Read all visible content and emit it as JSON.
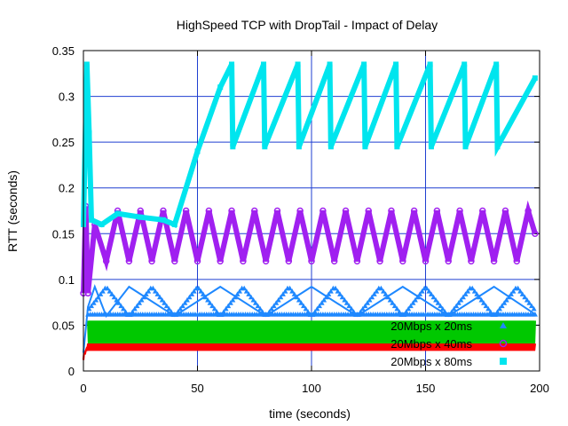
{
  "chart_data": {
    "type": "scatter",
    "title": "HighSpeed TCP with DropTail - Impact of Delay",
    "xlabel": "time (seconds)",
    "ylabel": "RTT (seconds)",
    "xlim": [
      0,
      200
    ],
    "ylim": [
      0,
      0.35
    ],
    "x_ticks": [
      "0",
      "50",
      "100",
      "150",
      "200"
    ],
    "y_ticks": [
      "0",
      "0.05",
      "0.1",
      "0.15",
      "0.2",
      "0.25",
      "0.3",
      "0.35"
    ],
    "grid": true,
    "legend_position": "bottom-right",
    "series": [
      {
        "name": "20Mbps x 20ms",
        "color": "#1e88ff",
        "marker": "triangle",
        "points": [
          [
            0,
            0.02
          ],
          [
            2,
            0.07
          ],
          [
            5,
            0.092
          ],
          [
            10,
            0.06
          ],
          [
            20,
            0.092
          ],
          [
            40,
            0.06
          ],
          [
            60,
            0.092
          ],
          [
            80,
            0.06
          ],
          [
            100,
            0.092
          ],
          [
            120,
            0.06
          ],
          [
            140,
            0.092
          ],
          [
            160,
            0.06
          ],
          [
            180,
            0.092
          ],
          [
            198,
            0.062
          ]
        ]
      },
      {
        "name": "20Mbps x 40ms",
        "color": "#a020f0",
        "marker": "circle",
        "points": [
          [
            0,
            0.085
          ],
          [
            1,
            0.18
          ],
          [
            2,
            0.085
          ],
          [
            5,
            0.16
          ],
          [
            10,
            0.12
          ],
          [
            15,
            0.175
          ],
          [
            20,
            0.12
          ],
          [
            25,
            0.175
          ],
          [
            30,
            0.12
          ],
          [
            35,
            0.175
          ],
          [
            40,
            0.12
          ],
          [
            45,
            0.175
          ],
          [
            50,
            0.12
          ],
          [
            55,
            0.175
          ],
          [
            60,
            0.12
          ],
          [
            65,
            0.175
          ],
          [
            70,
            0.12
          ],
          [
            75,
            0.175
          ],
          [
            80,
            0.12
          ],
          [
            85,
            0.175
          ],
          [
            90,
            0.12
          ],
          [
            95,
            0.175
          ],
          [
            100,
            0.12
          ],
          [
            105,
            0.175
          ],
          [
            110,
            0.12
          ],
          [
            115,
            0.175
          ],
          [
            120,
            0.12
          ],
          [
            125,
            0.175
          ],
          [
            130,
            0.12
          ],
          [
            135,
            0.175
          ],
          [
            140,
            0.12
          ],
          [
            145,
            0.175
          ],
          [
            150,
            0.12
          ],
          [
            155,
            0.175
          ],
          [
            160,
            0.12
          ],
          [
            165,
            0.175
          ],
          [
            170,
            0.12
          ],
          [
            175,
            0.175
          ],
          [
            180,
            0.12
          ],
          [
            185,
            0.175
          ],
          [
            190,
            0.12
          ],
          [
            195,
            0.175
          ],
          [
            198,
            0.15
          ]
        ]
      },
      {
        "name": "20Mbps x 80ms",
        "color": "#00e5ee",
        "marker": "square",
        "points": [
          [
            0,
            0.16
          ],
          [
            1.5,
            0.335
          ],
          [
            2.5,
            0.26
          ],
          [
            3.5,
            0.165
          ],
          [
            8,
            0.16
          ],
          [
            15,
            0.172
          ],
          [
            25,
            0.168
          ],
          [
            35,
            0.165
          ],
          [
            40,
            0.16
          ],
          [
            50,
            0.24
          ],
          [
            60,
            0.31
          ],
          [
            65,
            0.335
          ],
          [
            65.5,
            0.245
          ],
          [
            79,
            0.335
          ],
          [
            79.5,
            0.245
          ],
          [
            94,
            0.335
          ],
          [
            94.5,
            0.245
          ],
          [
            108,
            0.335
          ],
          [
            108.5,
            0.245
          ],
          [
            123,
            0.335
          ],
          [
            123.5,
            0.245
          ],
          [
            137,
            0.335
          ],
          [
            137.5,
            0.245
          ],
          [
            152,
            0.335
          ],
          [
            152.5,
            0.245
          ],
          [
            167,
            0.335
          ],
          [
            167.5,
            0.245
          ],
          [
            181,
            0.335
          ],
          [
            181.5,
            0.245
          ],
          [
            198,
            0.32
          ]
        ]
      },
      {
        "color": "#00c800",
        "marker": "none",
        "points": [
          [
            2,
            0.055
          ],
          [
            198,
            0.055
          ]
        ],
        "low": 0.03
      },
      {
        "color": "#ff0000",
        "marker": "none",
        "points": [
          [
            0,
            0.012
          ],
          [
            2,
            0.03
          ],
          [
            198,
            0.03
          ]
        ],
        "low": 0.022
      }
    ]
  }
}
